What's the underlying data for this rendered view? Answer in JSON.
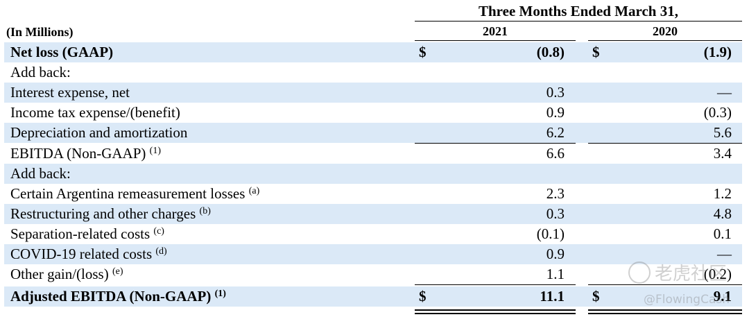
{
  "header": {
    "period_title": "Three Months Ended March 31,",
    "units_label": "(In Millions)",
    "year_current": "2021",
    "year_prior": "2020"
  },
  "rows": [
    {
      "label": "Net loss (GAAP)",
      "sup": "",
      "v2021": "(0.8)",
      "v2020": "(1.9)",
      "dollar": "$"
    },
    {
      "label": "Add back:",
      "sup": "",
      "v2021": "",
      "v2020": ""
    },
    {
      "label": "Interest expense, net",
      "sup": "",
      "v2021": "0.3",
      "v2020": "—"
    },
    {
      "label": "Income tax expense/(benefit)",
      "sup": "",
      "v2021": "0.9",
      "v2020": "(0.3)"
    },
    {
      "label": "Depreciation and amortization",
      "sup": "",
      "v2021": "6.2",
      "v2020": "5.6"
    },
    {
      "label": "EBITDA (Non-GAAP)",
      "sup": "(1)",
      "v2021": "6.6",
      "v2020": "3.4"
    },
    {
      "label": "Add back:",
      "sup": "",
      "v2021": "",
      "v2020": ""
    },
    {
      "label": "Certain Argentina remeasurement losses",
      "sup": "(a)",
      "v2021": "2.3",
      "v2020": "1.2"
    },
    {
      "label": "Restructuring and other charges",
      "sup": "(b)",
      "v2021": "0.3",
      "v2020": "4.8"
    },
    {
      "label": "Separation-related costs",
      "sup": "(c)",
      "v2021": "(0.1)",
      "v2020": "0.1"
    },
    {
      "label": "COVID-19 related costs",
      "sup": "(d)",
      "v2021": "0.9",
      "v2020": "—"
    },
    {
      "label": "Other gain/(loss)",
      "sup": "(e)",
      "v2021": "1.1",
      "v2020": "(0.2)"
    },
    {
      "label": "Adjusted EBITDA (Non-GAAP)",
      "sup": "(1)",
      "v2021": "11.1",
      "v2020": "9.1",
      "dollar": "$"
    }
  ],
  "watermark": {
    "brand": "老虎社区",
    "handle": "@FlowingCash"
  }
}
